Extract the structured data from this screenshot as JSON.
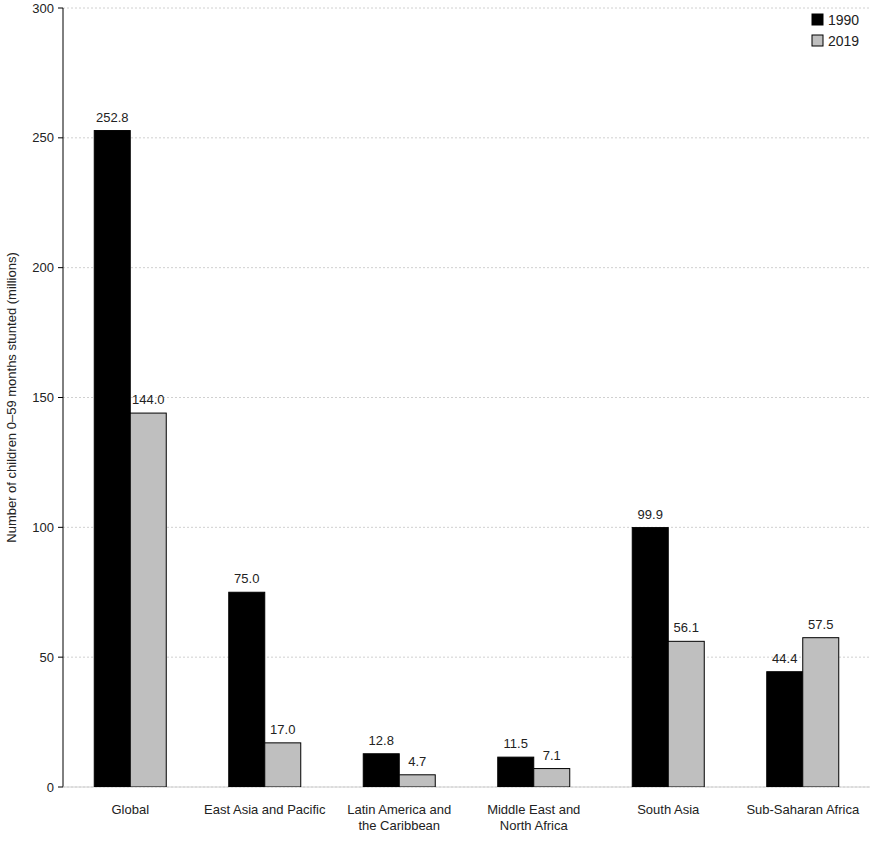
{
  "chart_data": {
    "type": "bar",
    "ylabel": "Number of children 0–59 months stunted (millions)",
    "categories": [
      "Global",
      "East Asia and Pacific",
      "Latin America and the Caribbean",
      "Middle East and North Africa",
      "South Asia",
      "Sub-Saharan Africa"
    ],
    "series": [
      {
        "name": "1990",
        "color": "#000000",
        "values": [
          252.8,
          75.0,
          12.8,
          11.5,
          99.9,
          44.4
        ],
        "value_labels": [
          "252.8",
          "75.0",
          "12.8",
          "11.5",
          "99.9",
          "44.4"
        ]
      },
      {
        "name": "2019",
        "color": "#bfbfbf",
        "values": [
          144.0,
          17.0,
          4.7,
          7.1,
          56.1,
          57.5
        ],
        "value_labels": [
          "144.0",
          "17.0",
          "4.7",
          "7.1",
          "56.1",
          "57.5"
        ]
      }
    ],
    "ylim": [
      0,
      300
    ],
    "yticks": [
      0,
      50,
      100,
      150,
      200,
      250,
      300
    ],
    "grid": true,
    "legend": "top-right",
    "data_labels": true
  }
}
